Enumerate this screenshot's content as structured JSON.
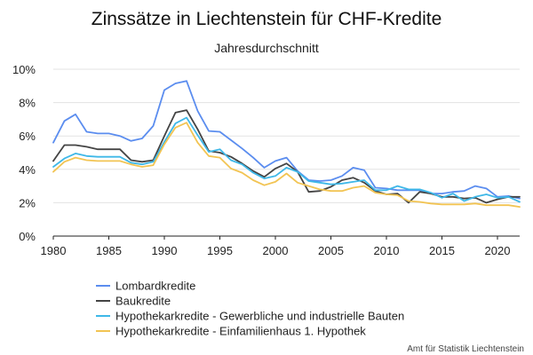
{
  "chart_data": {
    "type": "line",
    "title": "Zinssätze in Liechtenstein für CHF-Kredite",
    "subtitle": "Jahresdurchschnitt",
    "source": "Amt für Statistik Liechtenstein",
    "xlim": [
      1980,
      2022
    ],
    "ylim": [
      0,
      10
    ],
    "x_ticks": [
      1980,
      1985,
      1990,
      1995,
      2000,
      2005,
      2010,
      2015,
      2020
    ],
    "y_ticks": [
      0,
      2,
      4,
      6,
      8,
      10
    ],
    "y_tick_labels": [
      "0%",
      "2%",
      "4%",
      "6%",
      "8%",
      "10%"
    ],
    "grid": true,
    "legend_position": "bottom",
    "x": [
      1980,
      1981,
      1982,
      1983,
      1984,
      1985,
      1986,
      1987,
      1988,
      1989,
      1990,
      1991,
      1992,
      1993,
      1994,
      1995,
      1996,
      1997,
      1998,
      1999,
      2000,
      2001,
      2002,
      2003,
      2004,
      2005,
      2006,
      2007,
      2008,
      2009,
      2010,
      2011,
      2012,
      2013,
      2014,
      2015,
      2016,
      2017,
      2018,
      2019,
      2020,
      2021,
      2022
    ],
    "series": [
      {
        "name": "Lombardkredite",
        "color": "#5b8def",
        "values": [
          5.6,
          6.9,
          7.3,
          6.25,
          6.15,
          6.15,
          6.0,
          5.7,
          5.85,
          6.6,
          8.75,
          9.15,
          9.3,
          7.5,
          6.3,
          6.25,
          5.75,
          5.25,
          4.7,
          4.1,
          4.5,
          4.7,
          3.9,
          3.35,
          3.3,
          3.35,
          3.6,
          4.1,
          3.95,
          2.9,
          2.85,
          2.75,
          2.75,
          2.75,
          2.55,
          2.55,
          2.65,
          2.7,
          3.0,
          2.85,
          2.35,
          2.4,
          2.25
        ]
      },
      {
        "name": "Baukredite",
        "color": "#444444",
        "values": [
          4.5,
          5.45,
          5.45,
          5.35,
          5.2,
          5.2,
          5.2,
          4.55,
          4.45,
          4.55,
          6.0,
          7.4,
          7.55,
          6.4,
          5.1,
          5.0,
          4.75,
          4.35,
          3.9,
          3.55,
          4.05,
          4.35,
          3.85,
          2.65,
          2.7,
          2.95,
          3.35,
          3.5,
          3.2,
          2.7,
          2.5,
          2.55,
          2.0,
          2.65,
          2.55,
          2.35,
          2.35,
          2.25,
          2.3,
          2.0,
          2.2,
          2.35,
          2.35
        ]
      },
      {
        "name": "Hypothekarkredite - Gewerbliche und industrielle Bauten",
        "color": "#3fb8e8",
        "values": [
          4.15,
          4.65,
          4.95,
          4.8,
          4.75,
          4.75,
          4.75,
          4.4,
          4.3,
          4.45,
          5.65,
          6.75,
          7.1,
          6.05,
          5.05,
          5.2,
          4.55,
          4.3,
          3.8,
          3.45,
          3.6,
          4.1,
          3.85,
          3.3,
          3.2,
          3.1,
          3.15,
          3.25,
          3.35,
          2.75,
          2.75,
          3.0,
          2.8,
          2.8,
          2.6,
          2.3,
          2.55,
          2.1,
          2.35,
          2.5,
          2.3,
          2.35,
          2.05
        ]
      },
      {
        "name": "Hypothekarkredite - Einfamilienhaus 1. Hypothek",
        "color": "#f2c453",
        "values": [
          3.85,
          4.45,
          4.7,
          4.55,
          4.5,
          4.5,
          4.5,
          4.3,
          4.15,
          4.25,
          5.5,
          6.5,
          6.8,
          5.6,
          4.8,
          4.7,
          4.05,
          3.8,
          3.35,
          3.05,
          3.25,
          3.75,
          3.2,
          3.0,
          2.8,
          2.7,
          2.7,
          2.9,
          3.0,
          2.6,
          2.5,
          2.45,
          2.1,
          2.05,
          1.95,
          1.9,
          1.9,
          1.9,
          1.95,
          1.85,
          1.85,
          1.85,
          1.75
        ]
      }
    ]
  }
}
